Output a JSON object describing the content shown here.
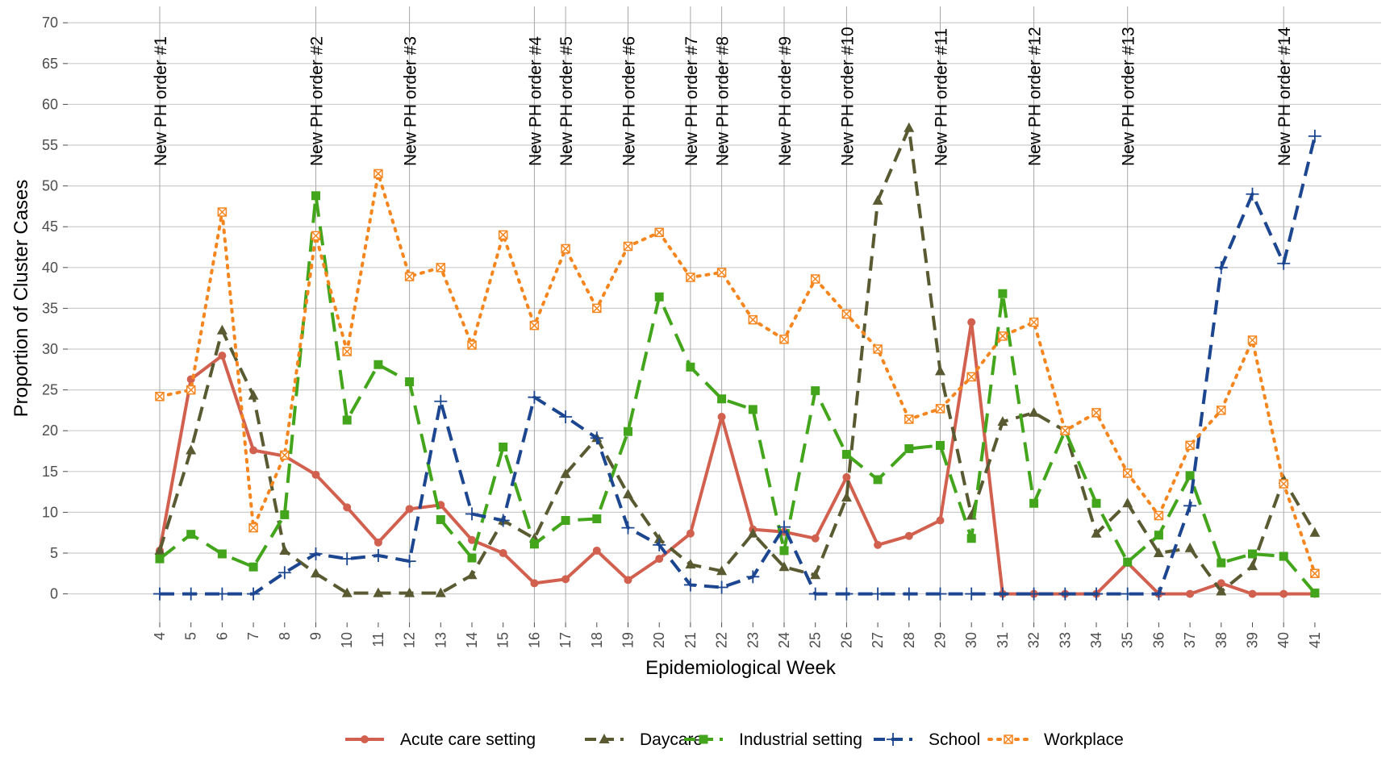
{
  "chart_data": {
    "type": "line",
    "title": "",
    "xlabel": "Epidemiological Week",
    "ylabel": "Proportion of Cluster Cases",
    "ylim": [
      -3.5,
      72
    ],
    "yticks": [
      0,
      5,
      10,
      15,
      20,
      25,
      30,
      35,
      40,
      45,
      50,
      55,
      60,
      65,
      70
    ],
    "x": [
      4,
      5,
      6,
      7,
      8,
      9,
      10,
      11,
      12,
      13,
      14,
      15,
      16,
      17,
      18,
      19,
      20,
      21,
      22,
      23,
      24,
      25,
      26,
      27,
      28,
      29,
      30,
      31,
      32,
      33,
      34,
      35,
      36,
      37,
      38,
      39,
      40,
      41
    ],
    "grid": true,
    "legend_position": "bottom",
    "annotations": [
      {
        "x": 4,
        "label": "New PH order #1"
      },
      {
        "x": 9,
        "label": "New PH order #2"
      },
      {
        "x": 12,
        "label": "New PH order #3"
      },
      {
        "x": 16,
        "label": "New PH order #4"
      },
      {
        "x": 17,
        "label": "New PH order #5"
      },
      {
        "x": 19,
        "label": "New PH order #6"
      },
      {
        "x": 21,
        "label": "New PH order #7"
      },
      {
        "x": 22,
        "label": "New PH order #8"
      },
      {
        "x": 24,
        "label": "New PH order #9"
      },
      {
        "x": 26,
        "label": "New PH order #10"
      },
      {
        "x": 29,
        "label": "New PH order #11"
      },
      {
        "x": 32,
        "label": "New PH order #12"
      },
      {
        "x": 35,
        "label": "New PH order #13"
      },
      {
        "x": 40,
        "label": "New PH order #14"
      }
    ],
    "series": [
      {
        "name": "Acute care setting",
        "color": "#d2604f",
        "dash": "solid",
        "marker": "circle",
        "values": [
          5.3,
          26.3,
          29.2,
          17.6,
          16.9,
          14.6,
          10.6,
          6.3,
          10.4,
          10.9,
          6.6,
          5.0,
          1.3,
          1.8,
          5.3,
          1.7,
          4.3,
          7.4,
          21.7,
          7.9,
          7.6,
          6.8,
          14.3,
          6.0,
          7.1,
          9.0,
          33.3,
          0,
          0,
          0,
          0,
          3.8,
          0,
          0,
          1.3,
          0,
          0,
          0
        ]
      },
      {
        "name": "Daycare",
        "color": "#5a5a32",
        "dash": "dashed",
        "marker": "triangle",
        "values": [
          5.3,
          17.6,
          32.3,
          24.3,
          5.3,
          2.5,
          0.1,
          0.1,
          0.1,
          0.1,
          2.3,
          9.0,
          6.8,
          14.7,
          19.1,
          12.2,
          6.7,
          3.6,
          2.8,
          7.4,
          3.3,
          2.3,
          11.8,
          48.2,
          57.1,
          27.3,
          9.6,
          21.1,
          22.2,
          20.0,
          7.4,
          11.1,
          5.0,
          5.6,
          0.3,
          3.4,
          14.0,
          7.5
        ]
      },
      {
        "name": "Industrial setting",
        "color": "#43a51c",
        "dash": "longdash",
        "marker": "square",
        "values": [
          4.3,
          7.3,
          4.9,
          3.3,
          9.7,
          48.8,
          21.3,
          28.1,
          26.0,
          9.1,
          4.4,
          18.0,
          6.1,
          9.0,
          9.2,
          19.9,
          36.4,
          27.8,
          23.9,
          22.6,
          5.3,
          24.9,
          17.1,
          14.0,
          17.8,
          18.2,
          6.8,
          36.8,
          11.1,
          20.0,
          11.1,
          3.9,
          7.2,
          14.5,
          3.8,
          4.9,
          4.6,
          0.1
        ]
      },
      {
        "name": "School",
        "color": "#1c4690",
        "dash": "dashed",
        "marker": "plus",
        "values": [
          0,
          0,
          0,
          0,
          2.6,
          4.9,
          4.3,
          4.7,
          4.0,
          23.6,
          9.8,
          9.0,
          24.1,
          21.7,
          19.1,
          8.1,
          6.0,
          1.1,
          0.8,
          2.1,
          8.2,
          0,
          0,
          0,
          0,
          0,
          0,
          0,
          0,
          0,
          0,
          0,
          0,
          10.8,
          40.0,
          49.0,
          40.5,
          56.1
        ]
      },
      {
        "name": "Workplace",
        "color": "#f5861f",
        "dash": "dotted",
        "marker": "boxx",
        "values": [
          24.2,
          25.0,
          46.8,
          8.1,
          17.0,
          43.9,
          29.7,
          51.5,
          38.9,
          40.0,
          30.5,
          44.0,
          32.9,
          42.3,
          35.0,
          42.6,
          44.3,
          38.8,
          39.4,
          33.6,
          31.2,
          38.6,
          34.3,
          30.0,
          21.4,
          22.7,
          26.6,
          31.6,
          33.3,
          20.0,
          22.2,
          14.8,
          9.6,
          18.2,
          22.5,
          31.1,
          13.5,
          2.5
        ]
      }
    ]
  }
}
